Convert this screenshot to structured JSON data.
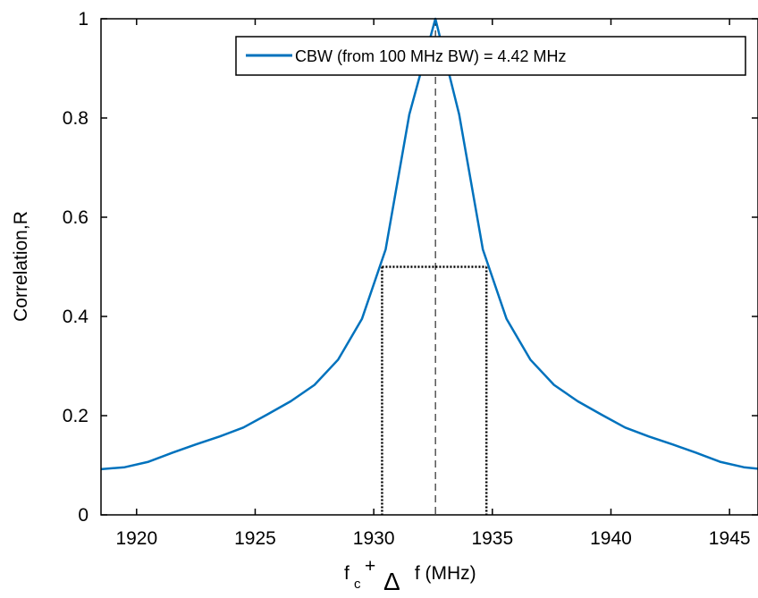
{
  "chart_data": {
    "type": "line",
    "xlabel": {
      "f": "f",
      "subscript": "c",
      "plus": "+",
      "delta": "Δ",
      "rest": " f (MHz)"
    },
    "ylabel": "Correlation,R",
    "xlim": [
      1918.5,
      1946.2
    ],
    "ylim": [
      0,
      1
    ],
    "xticks": [
      1920,
      1925,
      1930,
      1935,
      1940,
      1945
    ],
    "yticks": [
      0,
      0.2,
      0.4,
      0.6,
      0.8,
      1
    ],
    "ytick_labels": [
      "0",
      "0.2",
      "0.4",
      "0.6",
      "0.8",
      "1"
    ],
    "grid": false,
    "legend_position": "top-right",
    "series": [
      {
        "name": "CBW (from 100 MHz BW) = 4.42 MHz",
        "color": "#0072BD",
        "x": [
          1918.5,
          1919.5,
          1920.5,
          1921.5,
          1922.5,
          1923.5,
          1924.5,
          1925.5,
          1926.5,
          1927.5,
          1928.5,
          1929.5,
          1930.5,
          1931.5,
          1932.6,
          1933.6,
          1934.6,
          1935.6,
          1936.6,
          1937.6,
          1938.6,
          1939.6,
          1940.6,
          1941.6,
          1942.6,
          1943.6,
          1944.6,
          1945.6,
          1946.2
        ],
        "y": [
          0.092,
          0.096,
          0.107,
          0.125,
          0.142,
          0.158,
          0.176,
          0.202,
          0.229,
          0.262,
          0.313,
          0.395,
          0.535,
          0.807,
          1.0,
          0.807,
          0.535,
          0.395,
          0.313,
          0.262,
          0.229,
          0.202,
          0.176,
          0.158,
          0.142,
          0.125,
          0.107,
          0.096,
          0.093
        ]
      }
    ],
    "annotations": {
      "center_line_x": 1932.6,
      "half_level_y": 0.5,
      "half_bounds_x": [
        1930.35,
        1934.75
      ]
    }
  }
}
